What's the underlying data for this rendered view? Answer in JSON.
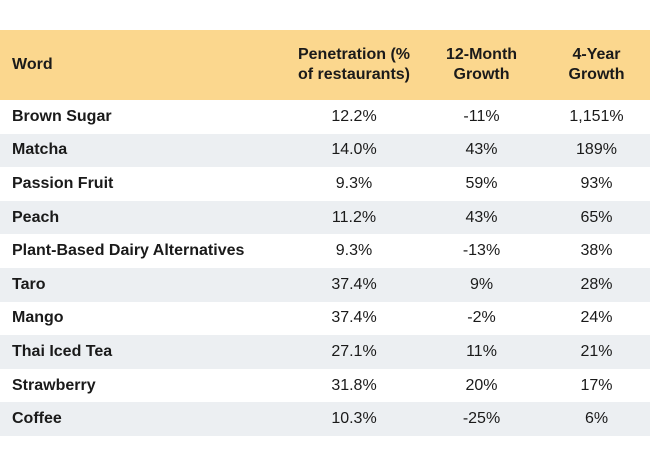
{
  "chart_data": {
    "type": "table",
    "columns": [
      "Word",
      "Penetration (% of restaurants)",
      "12-Month Growth",
      "4-Year Growth"
    ],
    "rows": [
      [
        "Brown Sugar",
        "12.2%",
        "-11%",
        "1,151%"
      ],
      [
        "Matcha",
        "14.0%",
        "43%",
        "189%"
      ],
      [
        "Passion Fruit",
        "9.3%",
        "59%",
        "93%"
      ],
      [
        "Peach",
        "11.2%",
        "43%",
        "65%"
      ],
      [
        "Plant-Based Dairy Alternatives",
        "9.3%",
        "-13%",
        "38%"
      ],
      [
        "Taro",
        "37.4%",
        "9%",
        "28%"
      ],
      [
        "Mango",
        "37.4%",
        "-2%",
        "24%"
      ],
      [
        "Thai Iced Tea",
        "27.1%",
        "11%",
        "21%"
      ],
      [
        "Strawberry",
        "31.8%",
        "20%",
        "17%"
      ],
      [
        "Coffee",
        "10.3%",
        "-25%",
        "6%"
      ]
    ]
  },
  "colors": {
    "header_background": "#fbd78e",
    "stripe_background": "#eceff2"
  }
}
